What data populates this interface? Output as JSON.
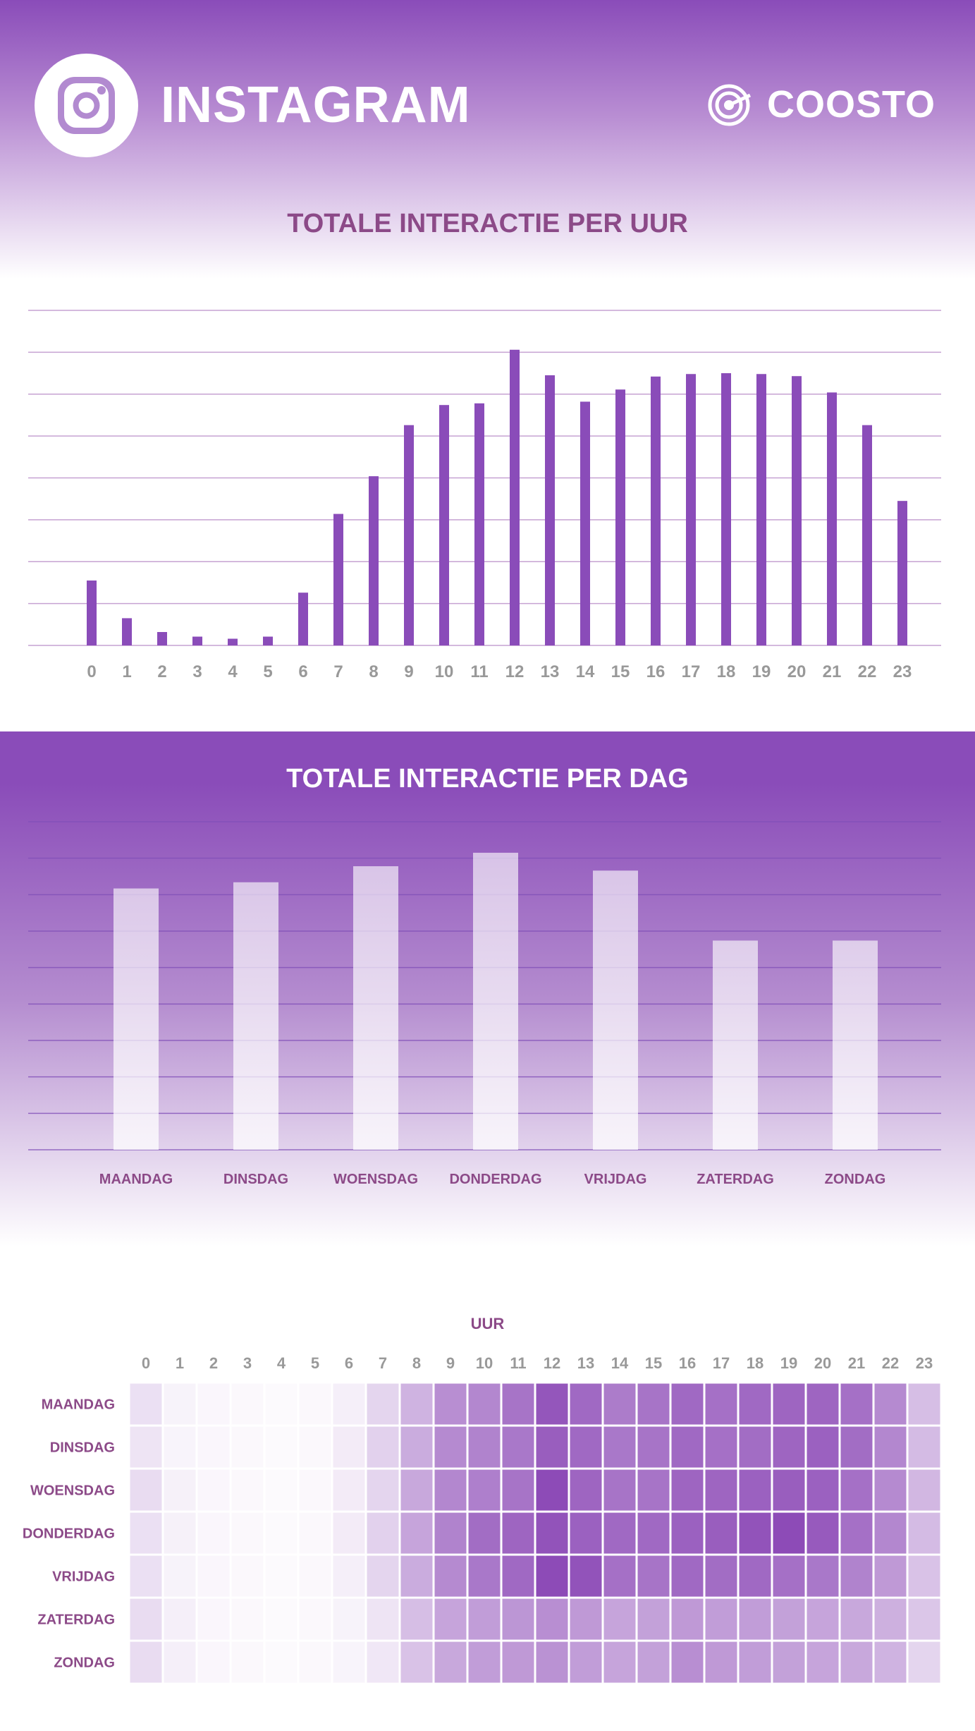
{
  "header": {
    "title": "INSTAGRAM",
    "brand": "COOSTO",
    "icons": [
      "instagram-icon",
      "coosto-logo-icon"
    ],
    "colors": {
      "accent": "#8a4cb9",
      "title_text": "#8c4a88",
      "axis_text": "#999999"
    }
  },
  "chart_data": [
    {
      "type": "bar",
      "title": "TOTALE INTERACTIE PER UUR",
      "categories": [
        "0",
        "1",
        "2",
        "3",
        "4",
        "5",
        "6",
        "7",
        "8",
        "9",
        "10",
        "11",
        "12",
        "13",
        "14",
        "15",
        "16",
        "17",
        "18",
        "19",
        "20",
        "21",
        "22",
        "23"
      ],
      "values": [
        15.5,
        6.5,
        3.2,
        2.1,
        1.6,
        2.1,
        12.6,
        31.4,
        40.4,
        52.6,
        57.4,
        57.8,
        70.6,
        64.5,
        58.2,
        61.1,
        64.2,
        64.8,
        65.0,
        64.8,
        64.3,
        60.4,
        52.6,
        34.5
      ],
      "ylim": [
        0,
        80
      ],
      "grid": true,
      "color": "#8a4cb9"
    },
    {
      "type": "bar",
      "title": "TOTALE INTERACTIE PER DAG",
      "categories": [
        "MAANDAG",
        "DINSDAG",
        "WOENSDAG",
        "DONDERDAG",
        "VRIJDAG",
        "ZATERDAG",
        "ZONDAG"
      ],
      "values": [
        71.7,
        73.4,
        77.8,
        81.5,
        76.6,
        57.4,
        57.4
      ],
      "ylim": [
        0,
        90
      ],
      "grid": true,
      "color": "#ffffff"
    },
    {
      "type": "heatmap",
      "xlabel": "UUR",
      "x": [
        "0",
        "1",
        "2",
        "3",
        "4",
        "5",
        "6",
        "7",
        "8",
        "9",
        "10",
        "11",
        "12",
        "13",
        "14",
        "15",
        "16",
        "17",
        "18",
        "19",
        "20",
        "21",
        "22",
        "23"
      ],
      "y": [
        "MAANDAG",
        "DINSDAG",
        "WOENSDAG",
        "DONDERDAG",
        "VRIJDAG",
        "ZATERDAG",
        "ZONDAG"
      ],
      "values": [
        [
          0.14,
          0.04,
          0.02,
          0.01,
          0.0,
          0.01,
          0.06,
          0.2,
          0.38,
          0.58,
          0.62,
          0.72,
          0.88,
          0.78,
          0.68,
          0.72,
          0.78,
          0.74,
          0.78,
          0.8,
          0.8,
          0.74,
          0.6,
          0.32
        ],
        [
          0.12,
          0.03,
          0.02,
          0.01,
          0.0,
          0.01,
          0.08,
          0.22,
          0.42,
          0.6,
          0.64,
          0.7,
          0.84,
          0.78,
          0.7,
          0.72,
          0.78,
          0.74,
          0.76,
          0.8,
          0.82,
          0.76,
          0.62,
          0.34
        ],
        [
          0.16,
          0.05,
          0.02,
          0.01,
          0.0,
          0.01,
          0.08,
          0.2,
          0.44,
          0.62,
          0.66,
          0.72,
          0.94,
          0.8,
          0.72,
          0.72,
          0.8,
          0.8,
          0.82,
          0.84,
          0.82,
          0.74,
          0.6,
          0.36
        ],
        [
          0.14,
          0.05,
          0.02,
          0.01,
          0.0,
          0.01,
          0.08,
          0.22,
          0.46,
          0.64,
          0.76,
          0.8,
          0.9,
          0.82,
          0.78,
          0.78,
          0.82,
          0.84,
          0.9,
          0.94,
          0.86,
          0.74,
          0.62,
          0.34
        ],
        [
          0.14,
          0.04,
          0.02,
          0.01,
          0.0,
          0.01,
          0.06,
          0.2,
          0.42,
          0.6,
          0.7,
          0.78,
          0.94,
          0.9,
          0.74,
          0.72,
          0.78,
          0.76,
          0.78,
          0.74,
          0.7,
          0.64,
          0.52,
          0.3
        ],
        [
          0.16,
          0.06,
          0.02,
          0.01,
          0.0,
          0.01,
          0.04,
          0.12,
          0.32,
          0.46,
          0.5,
          0.54,
          0.58,
          0.52,
          0.46,
          0.48,
          0.52,
          0.5,
          0.5,
          0.48,
          0.46,
          0.44,
          0.4,
          0.28
        ],
        [
          0.16,
          0.06,
          0.02,
          0.01,
          0.0,
          0.01,
          0.03,
          0.1,
          0.3,
          0.44,
          0.5,
          0.52,
          0.56,
          0.5,
          0.46,
          0.48,
          0.58,
          0.52,
          0.5,
          0.48,
          0.46,
          0.44,
          0.38,
          0.2
        ]
      ]
    }
  ]
}
